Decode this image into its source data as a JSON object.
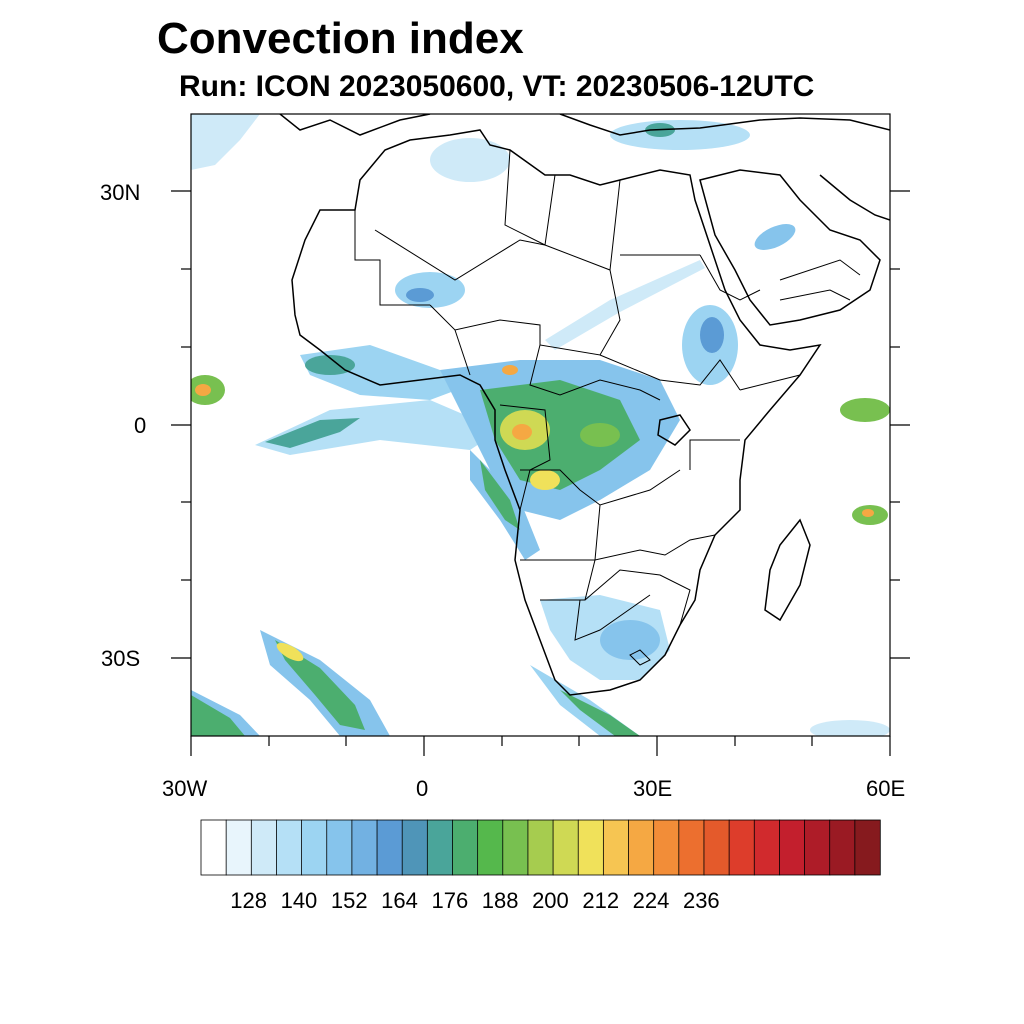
{
  "header": {
    "title": "Convection index",
    "subtitle": "Run: ICON 2023050600,  VT: 20230506-12UTC"
  },
  "axes": {
    "lat_labels": [
      "30N",
      "0",
      "30S"
    ],
    "lon_labels": [
      "30W",
      "0",
      "30E",
      "60E"
    ],
    "lat_range": [
      -40,
      40
    ],
    "lon_range": [
      -30,
      60
    ]
  },
  "colorbar": {
    "labels": [
      "128",
      "140",
      "152",
      "164",
      "176",
      "188",
      "200",
      "212",
      "224",
      "236"
    ],
    "colors": [
      "#ffffff",
      "#e8f5fc",
      "#cfeaf8",
      "#b5e0f6",
      "#9cd4f2",
      "#86c4ec",
      "#72b1e2",
      "#5b9bd5",
      "#4f95b8",
      "#4aa59a",
      "#4cae6f",
      "#55b84c",
      "#78c050",
      "#a6cc4f",
      "#cfd954",
      "#f0e15a",
      "#f6c552",
      "#f5a843",
      "#f28d38",
      "#ec6f2f",
      "#e45a2b",
      "#dd3d2b",
      "#d12a2d",
      "#c31f2d",
      "#ae1c28",
      "#9a1a23",
      "#861a1e"
    ]
  }
}
